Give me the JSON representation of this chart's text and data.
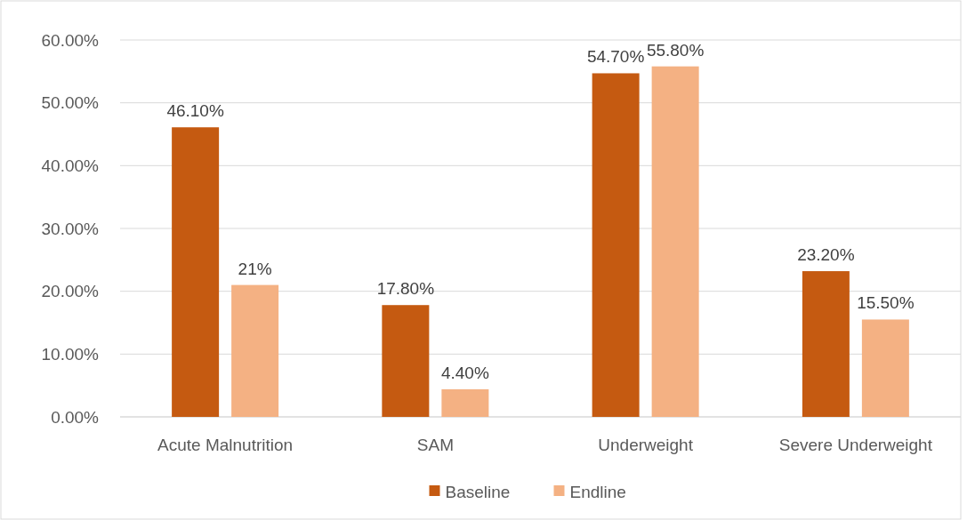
{
  "chart_data": {
    "type": "bar",
    "categories": [
      "Acute Malnutrition",
      "SAM",
      "Underweight",
      "Severe Underweight"
    ],
    "series": [
      {
        "name": "Baseline",
        "color": "#c55a11",
        "values": [
          46.1,
          17.8,
          54.7,
          23.2
        ],
        "value_labels": [
          "46.10%",
          "17.80%",
          "54.70%",
          "23.20%"
        ]
      },
      {
        "name": "Endline",
        "color": "#f4b183",
        "values": [
          21,
          4.4,
          55.8,
          15.5
        ],
        "value_labels": [
          "21%",
          "4.40%",
          "55.80%",
          "15.50%"
        ]
      }
    ],
    "ylim": [
      0,
      60
    ],
    "yticks": [
      {
        "value": 0,
        "label": "0.00%"
      },
      {
        "value": 10,
        "label": "10.00%"
      },
      {
        "value": 20,
        "label": "20.00%"
      },
      {
        "value": 30,
        "label": "30.00%"
      },
      {
        "value": 40,
        "label": "40.00%"
      },
      {
        "value": 50,
        "label": "50.00%"
      },
      {
        "value": 60,
        "label": "60.00%"
      }
    ],
    "grid": "y",
    "legend": "bottom"
  }
}
